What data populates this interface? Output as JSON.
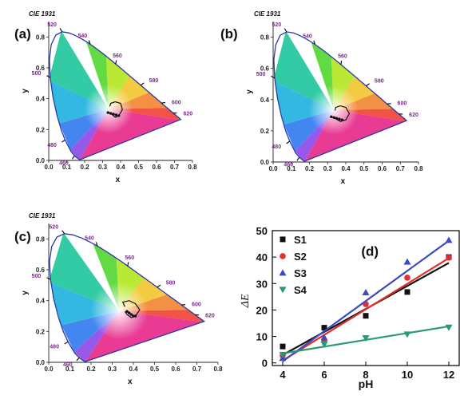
{
  "colors": {
    "S1": "#111111",
    "S2": "#e03030",
    "S3": "#3a4ac0",
    "S4": "#2a9a72",
    "locus": "#2a3aa0",
    "wavelength_label": "#7a2a8a"
  },
  "chart_data": [
    {
      "type": "scatter",
      "subtype": "cie1931-chromaticity",
      "panel_label": "(a)",
      "title": "CIE 1931",
      "xlabel": "x",
      "ylabel": "y",
      "xlim": [
        0.0,
        0.8
      ],
      "ylim": [
        0.0,
        0.9
      ],
      "xticks": [
        "0.0",
        "0.1",
        "0.2",
        "0.3",
        "0.4",
        "0.5",
        "0.6",
        "0.7",
        "0.8"
      ],
      "yticks": [
        "0.0",
        "0.2",
        "0.4",
        "0.6",
        "0.8"
      ],
      "wavelength_labels": [
        {
          "label": "460",
          "x": 0.144,
          "y": 0.03
        },
        {
          "label": "480",
          "x": 0.091,
          "y": 0.133
        },
        {
          "label": "500",
          "x": 0.008,
          "y": 0.538
        },
        {
          "label": "520",
          "x": 0.074,
          "y": 0.834
        },
        {
          "label": "540",
          "x": 0.23,
          "y": 0.754
        },
        {
          "label": "560",
          "x": 0.373,
          "y": 0.624
        },
        {
          "label": "580",
          "x": 0.512,
          "y": 0.487
        },
        {
          "label": "600",
          "x": 0.627,
          "y": 0.372
        },
        {
          "label": "620",
          "x": 0.691,
          "y": 0.308
        }
      ],
      "trajectory": [
        [
          0.33,
          0.31
        ],
        [
          0.35,
          0.3
        ],
        [
          0.37,
          0.28
        ],
        [
          0.39,
          0.29
        ],
        [
          0.41,
          0.33
        ],
        [
          0.4,
          0.37
        ],
        [
          0.37,
          0.38
        ],
        [
          0.345,
          0.37
        ],
        [
          0.34,
          0.35
        ]
      ],
      "points": [
        [
          0.33,
          0.31
        ],
        [
          0.345,
          0.305
        ],
        [
          0.36,
          0.3
        ],
        [
          0.375,
          0.295
        ],
        [
          0.39,
          0.29
        ]
      ]
    },
    {
      "type": "scatter",
      "subtype": "cie1931-chromaticity",
      "panel_label": "(b)",
      "title": "CIE 1931",
      "xlabel": "x",
      "ylabel": "y",
      "xlim": [
        0.0,
        0.8
      ],
      "ylim": [
        0.0,
        0.9
      ],
      "xticks": [
        "0.0",
        "0.1",
        "0.2",
        "0.3",
        "0.4",
        "0.5",
        "0.6",
        "0.7",
        "0.8"
      ],
      "yticks": [
        "0.0",
        "0.2",
        "0.4",
        "0.6",
        "0.8"
      ],
      "wavelength_labels": [
        {
          "label": "460",
          "x": 0.144,
          "y": 0.03
        },
        {
          "label": "480",
          "x": 0.091,
          "y": 0.133
        },
        {
          "label": "500",
          "x": 0.008,
          "y": 0.538
        },
        {
          "label": "520",
          "x": 0.074,
          "y": 0.834
        },
        {
          "label": "540",
          "x": 0.23,
          "y": 0.754
        },
        {
          "label": "560",
          "x": 0.373,
          "y": 0.624
        },
        {
          "label": "580",
          "x": 0.512,
          "y": 0.487
        },
        {
          "label": "600",
          "x": 0.627,
          "y": 0.372
        },
        {
          "label": "620",
          "x": 0.691,
          "y": 0.308
        }
      ],
      "trajectory": [
        [
          0.32,
          0.29
        ],
        [
          0.34,
          0.28
        ],
        [
          0.37,
          0.26
        ],
        [
          0.4,
          0.27
        ],
        [
          0.42,
          0.31
        ],
        [
          0.4,
          0.35
        ],
        [
          0.37,
          0.36
        ],
        [
          0.345,
          0.35
        ],
        [
          0.34,
          0.33
        ]
      ],
      "points": [
        [
          0.32,
          0.29
        ],
        [
          0.335,
          0.285
        ],
        [
          0.35,
          0.28
        ],
        [
          0.365,
          0.275
        ],
        [
          0.38,
          0.27
        ]
      ]
    },
    {
      "type": "scatter",
      "subtype": "cie1931-chromaticity",
      "panel_label": "(c)",
      "title": "CIE 1931",
      "xlabel": "x",
      "ylabel": "y",
      "xlim": [
        0.0,
        0.8
      ],
      "ylim": [
        0.0,
        0.9
      ],
      "xticks": [
        "0.0",
        "0.1",
        "0.2",
        "0.3",
        "0.4",
        "0.5",
        "0.6",
        "0.7",
        "0.8"
      ],
      "yticks": [
        "0.0",
        "0.2",
        "0.4",
        "0.6",
        "0.8"
      ],
      "wavelength_labels": [
        {
          "label": "460",
          "x": 0.144,
          "y": 0.03
        },
        {
          "label": "480",
          "x": 0.091,
          "y": 0.133
        },
        {
          "label": "500",
          "x": 0.008,
          "y": 0.538
        },
        {
          "label": "520",
          "x": 0.074,
          "y": 0.834
        },
        {
          "label": "540",
          "x": 0.23,
          "y": 0.754
        },
        {
          "label": "560",
          "x": 0.373,
          "y": 0.624
        },
        {
          "label": "580",
          "x": 0.512,
          "y": 0.487
        },
        {
          "label": "600",
          "x": 0.627,
          "y": 0.372
        },
        {
          "label": "620",
          "x": 0.691,
          "y": 0.308
        }
      ],
      "trajectory": [
        [
          0.36,
          0.33
        ],
        [
          0.37,
          0.31
        ],
        [
          0.39,
          0.29
        ],
        [
          0.41,
          0.3
        ],
        [
          0.43,
          0.34
        ],
        [
          0.41,
          0.38
        ],
        [
          0.38,
          0.4
        ],
        [
          0.35,
          0.39
        ],
        [
          0.36,
          0.36
        ]
      ],
      "points": [
        [
          0.37,
          0.33
        ],
        [
          0.38,
          0.32
        ],
        [
          0.39,
          0.31
        ],
        [
          0.4,
          0.3
        ],
        [
          0.41,
          0.3
        ]
      ]
    },
    {
      "type": "scatter",
      "panel_label": "(d)",
      "title": "",
      "xlabel": "pH",
      "ylabel": "ΔE",
      "xlim": [
        3.5,
        12.5
      ],
      "ylim": [
        -1,
        50
      ],
      "xticks": [
        4,
        6,
        8,
        10,
        12
      ],
      "yticks": [
        0,
        10,
        20,
        30,
        40,
        50
      ],
      "x": [
        4,
        6,
        8,
        10,
        12
      ],
      "series": [
        {
          "name": "S1",
          "marker": "square",
          "values": [
            6.2,
            13.3,
            17.8,
            26.8,
            40.0
          ],
          "fit": [
            [
              4,
              3.0
            ],
            [
              12,
              37.8
            ]
          ]
        },
        {
          "name": "S2",
          "marker": "circle",
          "values": [
            2.8,
            8.0,
            22.2,
            32.2,
            39.8
          ],
          "fit": [
            [
              4,
              0.9
            ],
            [
              12,
              39.6
            ]
          ]
        },
        {
          "name": "S3",
          "marker": "triangle-up",
          "values": [
            1.8,
            9.6,
            26.6,
            38.2,
            46.4
          ],
          "fit": [
            [
              4,
              0.6
            ],
            [
              12,
              46.2
            ]
          ]
        },
        {
          "name": "S4",
          "marker": "triangle-down",
          "values": [
            3.1,
            7.0,
            9.4,
            10.8,
            13.4
          ],
          "fit": [
            [
              4,
              3.6
            ],
            [
              12,
              13.8
            ]
          ]
        }
      ]
    }
  ]
}
